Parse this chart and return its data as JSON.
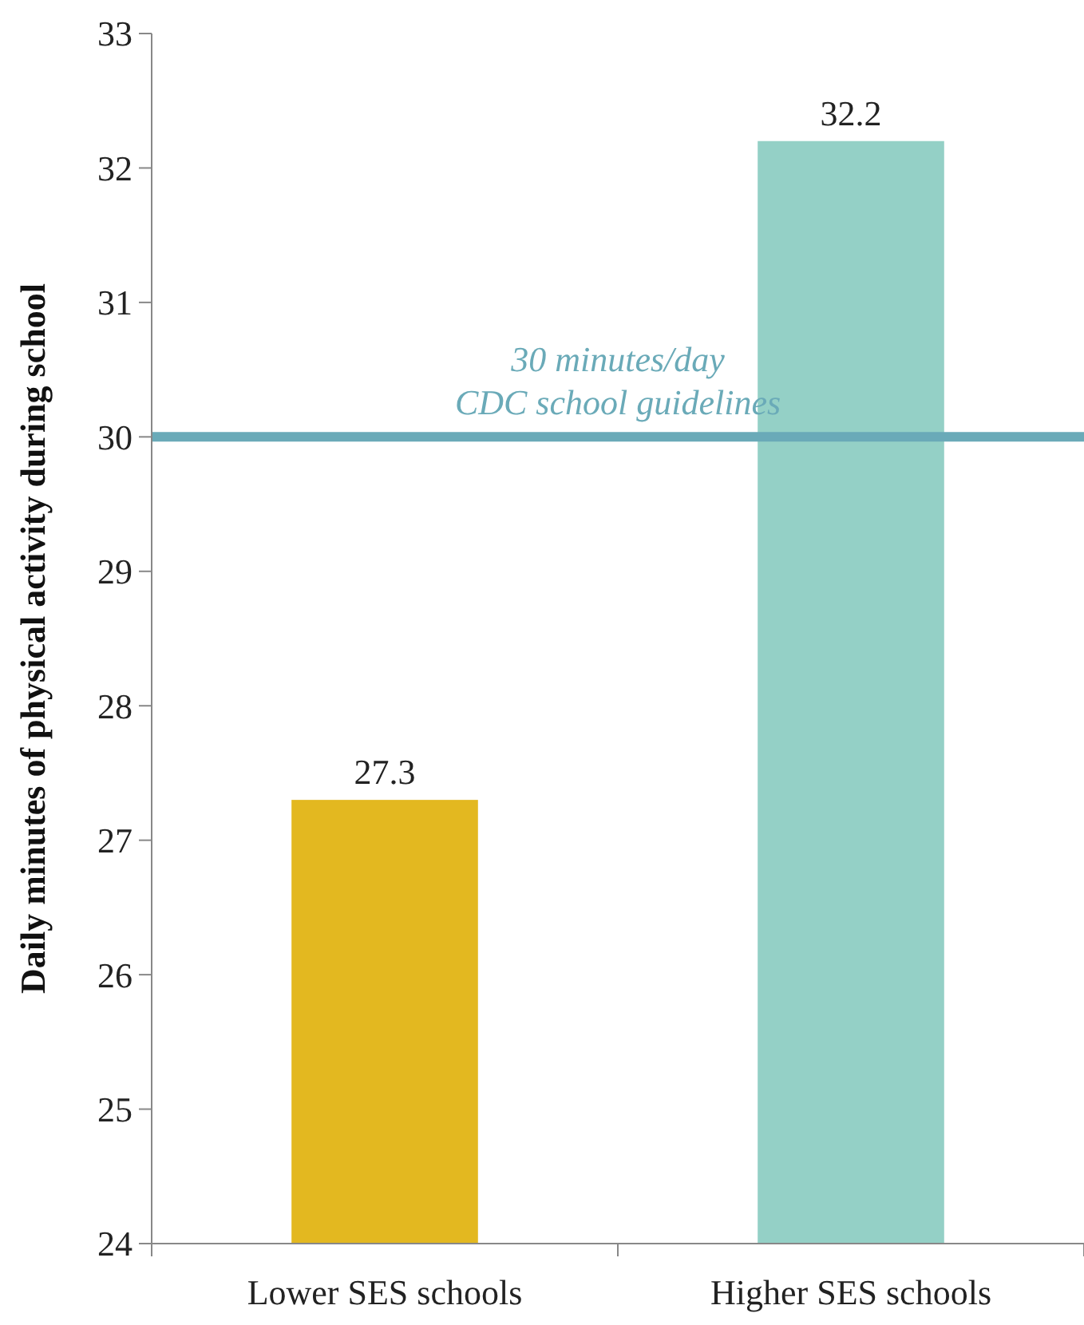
{
  "chart_data": {
    "type": "bar",
    "ylabel": "Daily minutes of physical activity during school",
    "categories": [
      "Lower SES schools",
      "Higher SES schools"
    ],
    "values": [
      27.3,
      32.2
    ],
    "colors": [
      "#e3b820",
      "#94d0c6"
    ],
    "ylim": [
      24,
      33
    ],
    "yticks": [
      24,
      25,
      26,
      27,
      28,
      29,
      30,
      31,
      32,
      33
    ],
    "data_labels": true,
    "ref_lines": [
      {
        "axis": "y",
        "value": 30,
        "label": "30 minutes/day\nCDC school guidelines",
        "color": "#6aaab8"
      }
    ]
  }
}
